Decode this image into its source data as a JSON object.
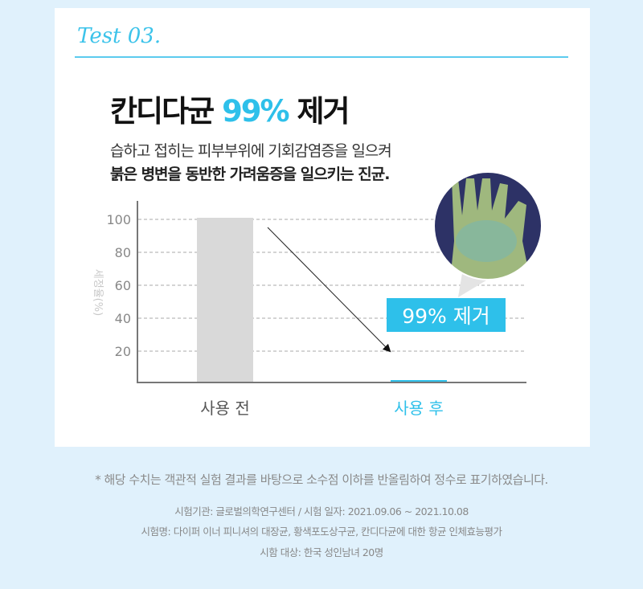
{
  "card": {
    "test_label": "Test 03.",
    "headline_pre": "칸디다균",
    "headline_accent": "99%",
    "headline_post": "제거",
    "sub_line1": "습하고 접히는 피부부위에 기회감염증을 일으켜",
    "sub_line2": "붉은 병변을 동반한 가려움증을 일으키는 진균.",
    "badge": "99% 제거",
    "photo_icon": "glove-hand-culture-photo"
  },
  "chart_data": {
    "type": "bar",
    "categories": [
      "사용 전",
      "사용 후"
    ],
    "values": [
      100,
      1
    ],
    "ylabel": "세정율(%)",
    "yticks": [
      20,
      40,
      60,
      80,
      100
    ],
    "ylim": [
      0,
      100
    ],
    "grid": true,
    "colors": {
      "before": "#d9d9d9",
      "after": "#2ec0ea",
      "axis": "#777777",
      "grid": "#aaaaaa"
    }
  },
  "footer": {
    "note": "* 해당 수치는 객관적 실험 결과를 바탕으로 소수점 이하를 반올림하여 정수로 표기하였습니다.",
    "institution": "시험기관: 글로벌의학연구센터 / 시험 일자: 2021.09.06 ~ 2021.10.08",
    "test_name": "시험명: 다이퍼 이너 피니셔의 대장균, 황색포도상구균, 칸디다균에 대한 항균 인체효능평가",
    "subjects": "시함 대상: 한국 성인남녀 20명"
  }
}
